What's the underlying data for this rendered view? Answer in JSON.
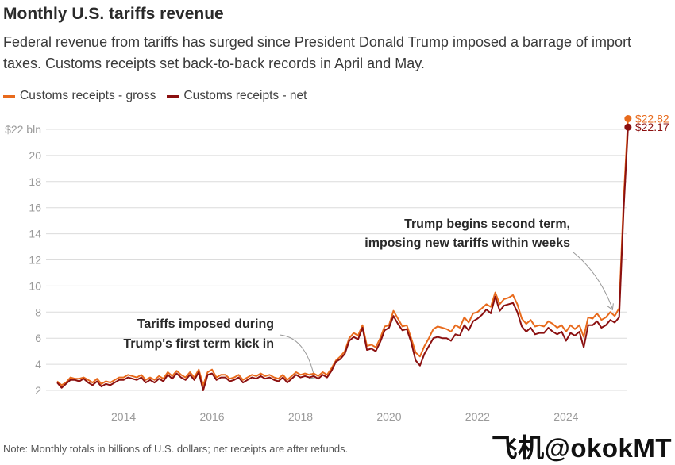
{
  "header": {
    "title": "Monthly U.S. tariffs revenue",
    "subtitle": "Federal revenue from tariffs has surged since President Donald Trump imposed a barrage of import taxes. Customs receipts set back-to-back records in April and May."
  },
  "legend": {
    "gross_label": "Customs receipts - gross",
    "net_label": "Customs receipts - net"
  },
  "footer": {
    "note": "Note: Monthly totals in billions of U.S. dollars; net receipts are after refunds.",
    "watermark": "飞机@okokMT"
  },
  "colors": {
    "gross": "#e86a1c",
    "net": "#8b1010",
    "grid": "#dcdcdc",
    "axis_text": "#9a9a9a"
  },
  "chart_data": {
    "type": "line",
    "title": "Monthly U.S. tariffs revenue",
    "xlabel": "",
    "ylabel": "",
    "ylim": [
      2,
      22
    ],
    "xlim": [
      2012.5,
      2025.6
    ],
    "y_ticks": [
      2,
      4,
      6,
      8,
      10,
      12,
      14,
      16,
      18,
      20,
      22
    ],
    "y_tick_labels": [
      "2",
      "4",
      "6",
      "8",
      "10",
      "12",
      "14",
      "16",
      "18",
      "20",
      "$22 bln"
    ],
    "x_ticks": [
      2014,
      2016,
      2018,
      2020,
      2022,
      2024
    ],
    "x_tick_labels": [
      "2014",
      "2016",
      "2018",
      "2020",
      "2022",
      "2024"
    ],
    "grid": true,
    "series": [
      {
        "name": "Customs receipts - gross",
        "color": "#e86a1c",
        "end_label": "$22.82",
        "points": [
          [
            2012.5,
            2.7
          ],
          [
            2012.6,
            2.4
          ],
          [
            2012.7,
            2.6
          ],
          [
            2012.8,
            3.0
          ],
          [
            2012.9,
            2.9
          ],
          [
            2013.0,
            2.9
          ],
          [
            2013.1,
            3.0
          ],
          [
            2013.2,
            2.8
          ],
          [
            2013.3,
            2.6
          ],
          [
            2013.4,
            2.9
          ],
          [
            2013.5,
            2.5
          ],
          [
            2013.6,
            2.7
          ],
          [
            2013.7,
            2.6
          ],
          [
            2013.8,
            2.8
          ],
          [
            2013.9,
            3.0
          ],
          [
            2014.0,
            3.0
          ],
          [
            2014.1,
            3.2
          ],
          [
            2014.2,
            3.1
          ],
          [
            2014.3,
            3.0
          ],
          [
            2014.4,
            3.2
          ],
          [
            2014.5,
            2.8
          ],
          [
            2014.6,
            3.0
          ],
          [
            2014.7,
            2.8
          ],
          [
            2014.8,
            3.1
          ],
          [
            2014.9,
            2.9
          ],
          [
            2015.0,
            3.4
          ],
          [
            2015.1,
            3.1
          ],
          [
            2015.2,
            3.5
          ],
          [
            2015.3,
            3.2
          ],
          [
            2015.4,
            3.0
          ],
          [
            2015.5,
            3.4
          ],
          [
            2015.6,
            3.0
          ],
          [
            2015.7,
            3.6
          ],
          [
            2015.8,
            2.4
          ],
          [
            2015.9,
            3.4
          ],
          [
            2016.0,
            3.6
          ],
          [
            2016.1,
            3.0
          ],
          [
            2016.2,
            3.2
          ],
          [
            2016.3,
            3.2
          ],
          [
            2016.4,
            2.9
          ],
          [
            2016.5,
            3.0
          ],
          [
            2016.6,
            3.2
          ],
          [
            2016.7,
            2.8
          ],
          [
            2016.8,
            3.0
          ],
          [
            2016.9,
            3.2
          ],
          [
            2017.0,
            3.1
          ],
          [
            2017.1,
            3.3
          ],
          [
            2017.2,
            3.1
          ],
          [
            2017.3,
            3.2
          ],
          [
            2017.4,
            3.0
          ],
          [
            2017.5,
            2.9
          ],
          [
            2017.6,
            3.2
          ],
          [
            2017.7,
            2.8
          ],
          [
            2017.8,
            3.1
          ],
          [
            2017.9,
            3.4
          ],
          [
            2018.0,
            3.2
          ],
          [
            2018.1,
            3.3
          ],
          [
            2018.2,
            3.2
          ],
          [
            2018.3,
            3.3
          ],
          [
            2018.4,
            3.1
          ],
          [
            2018.5,
            3.4
          ],
          [
            2018.6,
            3.2
          ],
          [
            2018.7,
            3.7
          ],
          [
            2018.8,
            4.3
          ],
          [
            2018.9,
            4.6
          ],
          [
            2019.0,
            5.0
          ],
          [
            2019.1,
            6.0
          ],
          [
            2019.2,
            6.4
          ],
          [
            2019.3,
            6.2
          ],
          [
            2019.4,
            7.0
          ],
          [
            2019.5,
            5.4
          ],
          [
            2019.6,
            5.5
          ],
          [
            2019.7,
            5.3
          ],
          [
            2019.8,
            6.0
          ],
          [
            2019.9,
            6.9
          ],
          [
            2020.0,
            7.0
          ],
          [
            2020.1,
            8.1
          ],
          [
            2020.2,
            7.5
          ],
          [
            2020.3,
            6.9
          ],
          [
            2020.4,
            7.0
          ],
          [
            2020.5,
            6.0
          ],
          [
            2020.6,
            4.9
          ],
          [
            2020.7,
            4.6
          ],
          [
            2020.8,
            5.4
          ],
          [
            2020.9,
            6.0
          ],
          [
            2021.0,
            6.7
          ],
          [
            2021.1,
            6.9
          ],
          [
            2021.2,
            6.8
          ],
          [
            2021.3,
            6.7
          ],
          [
            2021.4,
            6.5
          ],
          [
            2021.5,
            7.0
          ],
          [
            2021.6,
            6.8
          ],
          [
            2021.7,
            7.6
          ],
          [
            2021.8,
            7.2
          ],
          [
            2021.9,
            7.9
          ],
          [
            2022.0,
            8.0
          ],
          [
            2022.1,
            8.3
          ],
          [
            2022.2,
            8.6
          ],
          [
            2022.3,
            8.4
          ],
          [
            2022.4,
            9.5
          ],
          [
            2022.5,
            8.6
          ],
          [
            2022.6,
            9.0
          ],
          [
            2022.7,
            9.1
          ],
          [
            2022.8,
            9.3
          ],
          [
            2022.9,
            8.6
          ],
          [
            2023.0,
            7.5
          ],
          [
            2023.1,
            7.1
          ],
          [
            2023.2,
            7.4
          ],
          [
            2023.3,
            6.9
          ],
          [
            2023.4,
            7.0
          ],
          [
            2023.5,
            6.9
          ],
          [
            2023.6,
            7.3
          ],
          [
            2023.7,
            7.1
          ],
          [
            2023.8,
            6.8
          ],
          [
            2023.9,
            7.0
          ],
          [
            2024.0,
            6.5
          ],
          [
            2024.1,
            7.0
          ],
          [
            2024.2,
            6.7
          ],
          [
            2024.3,
            7.0
          ],
          [
            2024.4,
            6.1
          ],
          [
            2024.5,
            7.6
          ],
          [
            2024.6,
            7.5
          ],
          [
            2024.7,
            7.9
          ],
          [
            2024.8,
            7.4
          ],
          [
            2024.9,
            7.6
          ],
          [
            2025.0,
            8.0
          ],
          [
            2025.1,
            7.7
          ],
          [
            2025.2,
            8.3
          ],
          [
            2025.3,
            16.5
          ],
          [
            2025.4,
            22.82
          ]
        ]
      },
      {
        "name": "Customs receipts - net",
        "color": "#8b1010",
        "end_label": "$22.17",
        "points": [
          [
            2012.5,
            2.6
          ],
          [
            2012.6,
            2.2
          ],
          [
            2012.7,
            2.5
          ],
          [
            2012.8,
            2.8
          ],
          [
            2012.9,
            2.8
          ],
          [
            2013.0,
            2.7
          ],
          [
            2013.1,
            2.9
          ],
          [
            2013.2,
            2.6
          ],
          [
            2013.3,
            2.4
          ],
          [
            2013.4,
            2.7
          ],
          [
            2013.5,
            2.3
          ],
          [
            2013.6,
            2.5
          ],
          [
            2013.7,
            2.4
          ],
          [
            2013.8,
            2.6
          ],
          [
            2013.9,
            2.8
          ],
          [
            2014.0,
            2.8
          ],
          [
            2014.1,
            3.0
          ],
          [
            2014.2,
            2.9
          ],
          [
            2014.3,
            2.8
          ],
          [
            2014.4,
            3.0
          ],
          [
            2014.5,
            2.6
          ],
          [
            2014.6,
            2.8
          ],
          [
            2014.7,
            2.6
          ],
          [
            2014.8,
            2.9
          ],
          [
            2014.9,
            2.7
          ],
          [
            2015.0,
            3.2
          ],
          [
            2015.1,
            2.9
          ],
          [
            2015.2,
            3.3
          ],
          [
            2015.3,
            3.0
          ],
          [
            2015.4,
            2.8
          ],
          [
            2015.5,
            3.2
          ],
          [
            2015.6,
            2.8
          ],
          [
            2015.7,
            3.4
          ],
          [
            2015.8,
            2.0
          ],
          [
            2015.9,
            3.2
          ],
          [
            2016.0,
            3.3
          ],
          [
            2016.1,
            2.8
          ],
          [
            2016.2,
            3.0
          ],
          [
            2016.3,
            3.0
          ],
          [
            2016.4,
            2.7
          ],
          [
            2016.5,
            2.8
          ],
          [
            2016.6,
            3.0
          ],
          [
            2016.7,
            2.6
          ],
          [
            2016.8,
            2.8
          ],
          [
            2016.9,
            3.0
          ],
          [
            2017.0,
            2.9
          ],
          [
            2017.1,
            3.1
          ],
          [
            2017.2,
            2.9
          ],
          [
            2017.3,
            3.0
          ],
          [
            2017.4,
            2.8
          ],
          [
            2017.5,
            2.7
          ],
          [
            2017.6,
            3.0
          ],
          [
            2017.7,
            2.6
          ],
          [
            2017.8,
            2.9
          ],
          [
            2017.9,
            3.2
          ],
          [
            2018.0,
            3.0
          ],
          [
            2018.1,
            3.1
          ],
          [
            2018.2,
            3.0
          ],
          [
            2018.3,
            3.1
          ],
          [
            2018.4,
            2.9
          ],
          [
            2018.5,
            3.2
          ],
          [
            2018.6,
            3.0
          ],
          [
            2018.7,
            3.5
          ],
          [
            2018.8,
            4.2
          ],
          [
            2018.9,
            4.4
          ],
          [
            2019.0,
            4.8
          ],
          [
            2019.1,
            5.8
          ],
          [
            2019.2,
            6.1
          ],
          [
            2019.3,
            5.9
          ],
          [
            2019.4,
            6.8
          ],
          [
            2019.5,
            5.1
          ],
          [
            2019.6,
            5.2
          ],
          [
            2019.7,
            5.0
          ],
          [
            2019.8,
            5.7
          ],
          [
            2019.9,
            6.6
          ],
          [
            2020.0,
            6.8
          ],
          [
            2020.1,
            7.7
          ],
          [
            2020.2,
            7.1
          ],
          [
            2020.3,
            6.6
          ],
          [
            2020.4,
            6.7
          ],
          [
            2020.5,
            5.7
          ],
          [
            2020.6,
            4.3
          ],
          [
            2020.7,
            3.9
          ],
          [
            2020.8,
            4.8
          ],
          [
            2020.9,
            5.4
          ],
          [
            2021.0,
            6.0
          ],
          [
            2021.1,
            6.1
          ],
          [
            2021.2,
            6.0
          ],
          [
            2021.3,
            6.0
          ],
          [
            2021.4,
            5.8
          ],
          [
            2021.5,
            6.3
          ],
          [
            2021.6,
            6.2
          ],
          [
            2021.7,
            7.0
          ],
          [
            2021.8,
            6.6
          ],
          [
            2021.9,
            7.3
          ],
          [
            2022.0,
            7.5
          ],
          [
            2022.1,
            7.8
          ],
          [
            2022.2,
            8.2
          ],
          [
            2022.3,
            7.9
          ],
          [
            2022.4,
            9.2
          ],
          [
            2022.5,
            8.1
          ],
          [
            2022.6,
            8.5
          ],
          [
            2022.7,
            8.6
          ],
          [
            2022.8,
            8.7
          ],
          [
            2022.9,
            8.0
          ],
          [
            2023.0,
            6.9
          ],
          [
            2023.1,
            6.5
          ],
          [
            2023.2,
            6.8
          ],
          [
            2023.3,
            6.3
          ],
          [
            2023.4,
            6.4
          ],
          [
            2023.5,
            6.4
          ],
          [
            2023.6,
            6.8
          ],
          [
            2023.7,
            6.5
          ],
          [
            2023.8,
            6.3
          ],
          [
            2023.9,
            6.5
          ],
          [
            2024.0,
            5.8
          ],
          [
            2024.1,
            6.4
          ],
          [
            2024.2,
            6.2
          ],
          [
            2024.3,
            6.5
          ],
          [
            2024.4,
            5.3
          ],
          [
            2024.5,
            7.0
          ],
          [
            2024.6,
            7.0
          ],
          [
            2024.7,
            7.3
          ],
          [
            2024.8,
            6.8
          ],
          [
            2024.9,
            7.0
          ],
          [
            2025.0,
            7.4
          ],
          [
            2025.1,
            7.2
          ],
          [
            2025.2,
            7.6
          ],
          [
            2025.3,
            15.8
          ],
          [
            2025.4,
            22.17
          ]
        ]
      }
    ],
    "annotations": [
      {
        "text": "Tariffs imposed during Trump's first term kick in",
        "lines": [
          "Tariffs imposed during",
          "Trump's first term kick in"
        ],
        "target": [
          2018.35,
          3.1
        ]
      },
      {
        "text": "Trump begins second term, imposing new tariffs within weeks",
        "lines": [
          "Trump begins second term,",
          "imposing new tariffs within weeks"
        ],
        "target": [
          2025.05,
          8.0
        ]
      }
    ]
  }
}
